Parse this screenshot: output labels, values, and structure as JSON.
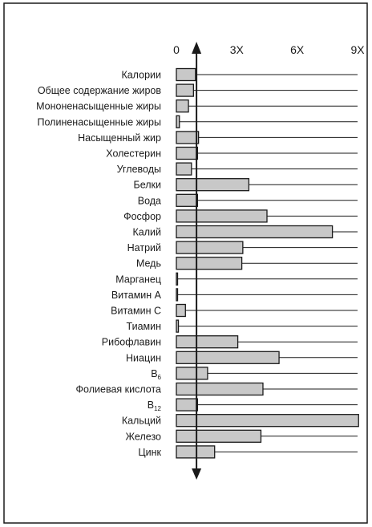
{
  "chart_data": {
    "type": "bar",
    "orientation": "horizontal",
    "title": "",
    "xlabel": "",
    "ylabel": "",
    "xlim": [
      0,
      9
    ],
    "x_ticks": [
      {
        "value": 0,
        "label": "0"
      },
      {
        "value": 3,
        "label": "3X"
      },
      {
        "value": 6,
        "label": "6X"
      },
      {
        "value": 9,
        "label": "9X"
      }
    ],
    "reference_value": 1,
    "categories": [
      {
        "label": "Калории",
        "value": 0.95
      },
      {
        "label": "Общее содержание жиров",
        "value": 0.85
      },
      {
        "label": "Мононенасыщенные жиры",
        "value": 0.6
      },
      {
        "label": "Полиненасыщенные жиры",
        "value": 0.15
      },
      {
        "label": "Насыщенный жир",
        "value": 1.1
      },
      {
        "label": "Холестерин",
        "value": 1.05
      },
      {
        "label": "Углеводы",
        "value": 0.75
      },
      {
        "label": "Белки",
        "value": 3.6
      },
      {
        "label": "Вода",
        "value": 1.05
      },
      {
        "label": "Фосфор",
        "value": 4.5
      },
      {
        "label": "Калий",
        "value": 7.75
      },
      {
        "label": "Натрий",
        "value": 3.3
      },
      {
        "label": "Медь",
        "value": 3.25
      },
      {
        "label": "Марганец",
        "value": 0.05
      },
      {
        "label": "Витамин А",
        "value": 0.05
      },
      {
        "label": "Витамин С",
        "value": 0.45
      },
      {
        "label": "Тиамин",
        "value": 0.1
      },
      {
        "label": "Рибофлавин",
        "value": 3.05
      },
      {
        "label": "Ниацин",
        "value": 5.1
      },
      {
        "label": "B",
        "subscript": "6",
        "value": 1.55
      },
      {
        "label": "Фолиевая кислота",
        "value": 4.3
      },
      {
        "label": "B",
        "subscript": "12",
        "value": 1.05
      },
      {
        "label": "Кальций",
        "value": 9.05
      },
      {
        "label": "Железо",
        "value": 4.2
      },
      {
        "label": "Цинк",
        "value": 1.9
      }
    ],
    "grid": false,
    "legend": "none",
    "colors": {
      "bar_fill": "#c8c8c8",
      "bar_stroke": "#1a1a1a",
      "frame": "#1a1a1a",
      "reference_line": "#1a1a1a"
    }
  }
}
